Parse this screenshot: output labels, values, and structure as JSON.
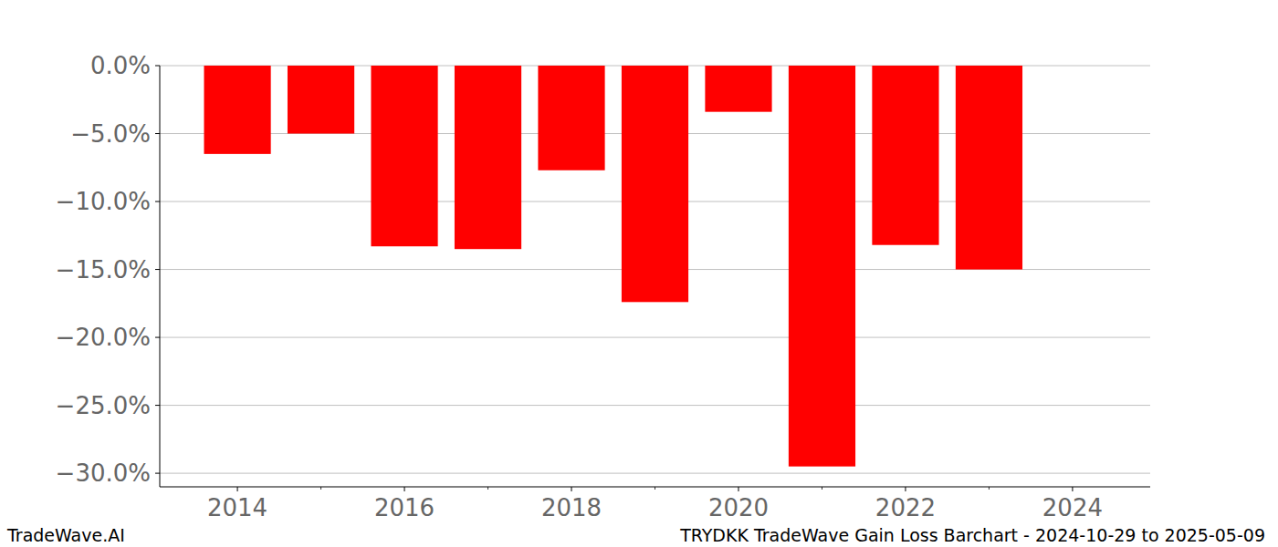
{
  "chart_data": {
    "type": "bar",
    "title": "TRYDKK TradeWave Gain Loss Barchart - 2024-10-29 to 2025-05-09",
    "annotations": [
      "TradeWave.AI"
    ],
    "x": [
      2014,
      2015,
      2016,
      2017,
      2018,
      2019,
      2020,
      2021,
      2022,
      2023,
      2024
    ],
    "values": [
      -6.5,
      -5.0,
      -13.3,
      -13.5,
      -7.7,
      -17.4,
      -3.4,
      -29.5,
      -13.2,
      -15.0,
      0
    ],
    "color": "#ff0000",
    "xlim": [
      2013.07,
      2024.93
    ],
    "xticks": [
      2014,
      2016,
      2018,
      2020,
      2022,
      2024
    ],
    "ylim": [
      -31.0,
      0
    ],
    "yticks": [
      {
        "value": 0,
        "label": "0.0%"
      },
      {
        "value": -5,
        "label": "−5.0%"
      },
      {
        "value": -10,
        "label": "−10.0%"
      },
      {
        "value": -15,
        "label": "−15.0%"
      },
      {
        "value": -20,
        "label": "−20.0%"
      },
      {
        "value": -25,
        "label": "−25.0%"
      },
      {
        "value": -30,
        "label": "−30.0%"
      }
    ],
    "grid": true
  }
}
